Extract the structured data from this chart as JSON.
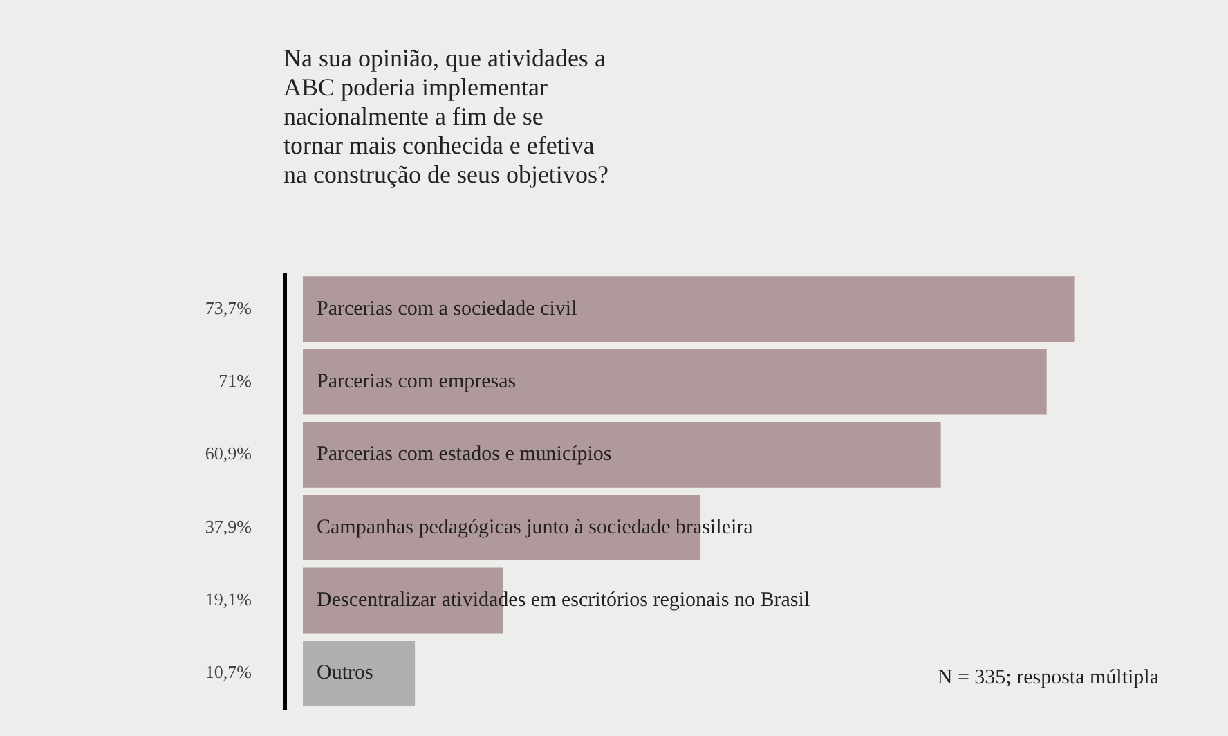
{
  "chart_data": {
    "type": "bar",
    "orientation": "horizontal",
    "title": "Na sua opinião, que atividades a ABC poderia implementar nacionalmente a fim de se tornar mais conhecida e efetiva na construção de seus objetivos?",
    "categories": [
      "Parcerias com a sociedade civil",
      "Parcerias com empresas",
      "Parcerias com estados e municípios",
      "Campanhas pedagógicas junto à sociedade brasileira",
      "Descentralizar atividades em escritórios regionais no Brasil",
      "Outros"
    ],
    "values": [
      73.7,
      71,
      60.9,
      37.9,
      19.1,
      10.7
    ],
    "value_labels": [
      "73,7%",
      "71%",
      "60,9%",
      "37,9%",
      "19,1%",
      "10,7%"
    ],
    "colors": [
      "#b0999b",
      "#b0999b",
      "#b0999b",
      "#b0999b",
      "#b0999b",
      "#b0b0b0"
    ],
    "annotations": [
      "N = 335; resposta múltipla"
    ],
    "legend": false
  }
}
